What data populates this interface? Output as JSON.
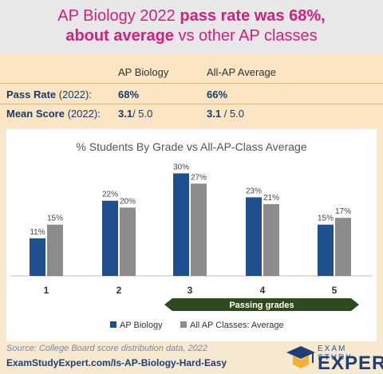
{
  "header": {
    "line1_a": "AP Biology 2022 ",
    "line1_b": "pass rate was 68%,",
    "line2_a": "about average",
    "line2_b": " vs other AP classes"
  },
  "stats": {
    "col1": "AP Biology",
    "col2": "All-AP Average",
    "rows": [
      {
        "label_bold": "Pass Rate",
        "label_rest": " (2022):",
        "v1_bold": "68%",
        "v1_rest": "",
        "v2_bold": "66%",
        "v2_rest": ""
      },
      {
        "label_bold": "Mean Score",
        "label_rest": " (2022):",
        "v1_bold": "3.1",
        "v1_rest": "/ 5.0",
        "v2_bold": "3.1",
        "v2_rest": " / 5.0"
      }
    ]
  },
  "chart_data": {
    "type": "bar",
    "title": "% Students By Grade vs All-AP-Class Average",
    "categories": [
      "1",
      "2",
      "3",
      "4",
      "5"
    ],
    "series": [
      {
        "name": "AP Biology",
        "values": [
          11,
          22,
          30,
          23,
          15
        ],
        "labels": [
          "11%",
          "22%",
          "30%",
          "23%",
          "15%"
        ]
      },
      {
        "name": "All AP Classes: Average",
        "values": [
          15,
          20,
          27,
          21,
          17
        ],
        "labels": [
          "15%",
          "20%",
          "27%",
          "21%",
          "17%"
        ]
      }
    ],
    "ylim": [
      0,
      35
    ],
    "annotation": "Passing grades",
    "legend_position": "bottom"
  },
  "colors": {
    "ap_bio": "#1f4f8f",
    "all_ap": "#8c8c8c",
    "arrow": "#2f4a1c",
    "header_text": "#d2207e"
  },
  "footer": {
    "source": "Source: College Board score distribution data, 2022",
    "url": "ExamStudyExpert.com/Is-AP-Biology-Hard-Easy",
    "logo_top": "EXAM STUDY",
    "logo_big": "EXPERT",
    "logo_icon": "graduation-cap-icon"
  }
}
